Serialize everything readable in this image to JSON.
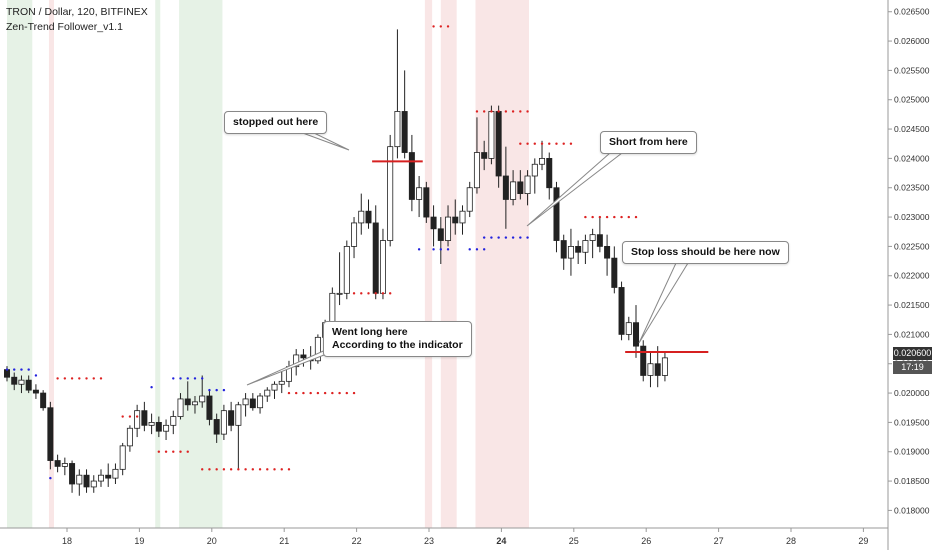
{
  "header": {
    "symbol_line": "TRON / Dollar, 120, BITFINEX",
    "indicator_line": "Zen-Trend Follower_v1.1"
  },
  "price_badge": {
    "last_price": "0.020600",
    "countdown": "17:19"
  },
  "callouts": {
    "stopped": "stopped out here",
    "long_line1": "Went long here",
    "long_line2": "According to the indicator",
    "short": "Short from here",
    "stoploss": "Stop loss should be here now"
  },
  "colors": {
    "up_candle": "#ffffff",
    "down_candle": "#222222",
    "wick": "#222222",
    "green_zone": "#e6f2e6",
    "red_zone": "#f9e6e6",
    "buy_dot": "#2222dd",
    "sell_dot": "#dd2222",
    "red_line": "#d62020",
    "axis_text": "#333333"
  },
  "chart_data": {
    "type": "candlestick",
    "ylim": [
      0.0177,
      0.0267
    ],
    "y_ticks": [
      "0.018000",
      "0.018500",
      "0.019000",
      "0.019500",
      "0.020000",
      "0.020500",
      "0.021000",
      "0.021500",
      "0.022000",
      "0.022500",
      "0.023000",
      "0.023500",
      "0.024000",
      "0.024500",
      "0.025000",
      "0.025500",
      "0.026000",
      "0.026500"
    ],
    "x_ticks": [
      "18",
      "19",
      "20",
      "21",
      "22",
      "23",
      "24",
      "25",
      "26",
      "27",
      "28",
      "29"
    ],
    "x_ticks_bold": [
      "24"
    ],
    "candles": [
      [
        0.0204,
        0.02046,
        0.0202,
        0.02027
      ],
      [
        0.02027,
        0.02035,
        0.02005,
        0.02015
      ],
      [
        0.02015,
        0.0203,
        0.02,
        0.02022
      ],
      [
        0.02022,
        0.0203,
        0.02,
        0.02005
      ],
      [
        0.02005,
        0.02015,
        0.0199,
        0.02
      ],
      [
        0.02,
        0.02005,
        0.0197,
        0.01975
      ],
      [
        0.01975,
        0.01985,
        0.0187,
        0.01885
      ],
      [
        0.01885,
        0.01895,
        0.01865,
        0.01875
      ],
      [
        0.01875,
        0.0189,
        0.0186,
        0.0188
      ],
      [
        0.0188,
        0.01885,
        0.0183,
        0.01845
      ],
      [
        0.01845,
        0.0187,
        0.01825,
        0.0186
      ],
      [
        0.0186,
        0.0187,
        0.0183,
        0.0184
      ],
      [
        0.0184,
        0.0186,
        0.0183,
        0.0185
      ],
      [
        0.0185,
        0.0187,
        0.0184,
        0.0186
      ],
      [
        0.0186,
        0.0188,
        0.0184,
        0.01855
      ],
      [
        0.01855,
        0.0188,
        0.01845,
        0.0187
      ],
      [
        0.0187,
        0.01915,
        0.0186,
        0.0191
      ],
      [
        0.0191,
        0.01945,
        0.019,
        0.0194
      ],
      [
        0.0194,
        0.0198,
        0.01925,
        0.0197
      ],
      [
        0.0197,
        0.01985,
        0.01935,
        0.01945
      ],
      [
        0.01945,
        0.01965,
        0.0193,
        0.0195
      ],
      [
        0.0195,
        0.0196,
        0.01925,
        0.01935
      ],
      [
        0.01935,
        0.01955,
        0.0192,
        0.01945
      ],
      [
        0.01945,
        0.0197,
        0.0193,
        0.0196
      ],
      [
        0.0196,
        0.02,
        0.01955,
        0.0199
      ],
      [
        0.0199,
        0.0202,
        0.0197,
        0.0198
      ],
      [
        0.0198,
        0.01995,
        0.01965,
        0.01985
      ],
      [
        0.01985,
        0.0203,
        0.01975,
        0.01995
      ],
      [
        0.01995,
        0.02005,
        0.01945,
        0.01955
      ],
      [
        0.01955,
        0.01965,
        0.01915,
        0.0193
      ],
      [
        0.0193,
        0.0198,
        0.0192,
        0.0197
      ],
      [
        0.0197,
        0.01985,
        0.01935,
        0.01945
      ],
      [
        0.01945,
        0.01985,
        0.0187,
        0.0198
      ],
      [
        0.0198,
        0.02,
        0.0196,
        0.0199
      ],
      [
        0.0199,
        0.02,
        0.0197,
        0.01975
      ],
      [
        0.01975,
        0.02,
        0.01965,
        0.01995
      ],
      [
        0.01995,
        0.0201,
        0.01985,
        0.02005
      ],
      [
        0.02005,
        0.0202,
        0.0199,
        0.02015
      ],
      [
        0.02015,
        0.0204,
        0.02,
        0.0202
      ],
      [
        0.0202,
        0.02055,
        0.0201,
        0.02045
      ],
      [
        0.02045,
        0.02075,
        0.0203,
        0.02065
      ],
      [
        0.02065,
        0.02075,
        0.02045,
        0.0206
      ],
      [
        0.0206,
        0.0208,
        0.0204,
        0.02055
      ],
      [
        0.02055,
        0.021,
        0.0205,
        0.02095
      ],
      [
        0.02095,
        0.02125,
        0.0208,
        0.0212
      ],
      [
        0.0212,
        0.0218,
        0.0211,
        0.0217
      ],
      [
        0.0217,
        0.0224,
        0.0215,
        0.0217
      ],
      [
        0.0217,
        0.0226,
        0.0216,
        0.0225
      ],
      [
        0.0225,
        0.023,
        0.0223,
        0.0229
      ],
      [
        0.0229,
        0.0234,
        0.0227,
        0.0231
      ],
      [
        0.0231,
        0.0233,
        0.0228,
        0.0229
      ],
      [
        0.0229,
        0.0232,
        0.0216,
        0.0217
      ],
      [
        0.0217,
        0.0228,
        0.0216,
        0.0226
      ],
      [
        0.0226,
        0.0244,
        0.0225,
        0.0242
      ],
      [
        0.0242,
        0.0262,
        0.024,
        0.0248
      ],
      [
        0.0248,
        0.0255,
        0.024,
        0.0241
      ],
      [
        0.0241,
        0.0244,
        0.0231,
        0.0233
      ],
      [
        0.0233,
        0.0237,
        0.023,
        0.0235
      ],
      [
        0.0235,
        0.0236,
        0.0229,
        0.023
      ],
      [
        0.023,
        0.0232,
        0.0225,
        0.0228
      ],
      [
        0.0228,
        0.023,
        0.0222,
        0.0226
      ],
      [
        0.0226,
        0.0232,
        0.0225,
        0.023
      ],
      [
        0.023,
        0.0233,
        0.0227,
        0.0229
      ],
      [
        0.0229,
        0.0232,
        0.0227,
        0.0231
      ],
      [
        0.0231,
        0.0236,
        0.023,
        0.0235
      ],
      [
        0.0235,
        0.0247,
        0.0234,
        0.0241
      ],
      [
        0.0241,
        0.0243,
        0.0238,
        0.024
      ],
      [
        0.024,
        0.0249,
        0.0239,
        0.0248
      ],
      [
        0.0248,
        0.0249,
        0.0235,
        0.0237
      ],
      [
        0.0237,
        0.0242,
        0.0228,
        0.0233
      ],
      [
        0.0233,
        0.0238,
        0.0232,
        0.0236
      ],
      [
        0.0236,
        0.0238,
        0.0233,
        0.0234
      ],
      [
        0.0234,
        0.0238,
        0.0232,
        0.0237
      ],
      [
        0.0237,
        0.024,
        0.0234,
        0.0239
      ],
      [
        0.0239,
        0.0243,
        0.0238,
        0.024
      ],
      [
        0.024,
        0.0241,
        0.0233,
        0.0235
      ],
      [
        0.0235,
        0.0236,
        0.0224,
        0.0226
      ],
      [
        0.0226,
        0.0227,
        0.0221,
        0.0223
      ],
      [
        0.0223,
        0.0228,
        0.022,
        0.0225
      ],
      [
        0.0225,
        0.0226,
        0.0222,
        0.0224
      ],
      [
        0.0224,
        0.0227,
        0.0222,
        0.0226
      ],
      [
        0.0226,
        0.0228,
        0.0223,
        0.0227
      ],
      [
        0.0227,
        0.023,
        0.0224,
        0.0225
      ],
      [
        0.0225,
        0.0227,
        0.022,
        0.0223
      ],
      [
        0.0223,
        0.0225,
        0.0217,
        0.0218
      ],
      [
        0.0218,
        0.0219,
        0.0209,
        0.021
      ],
      [
        0.021,
        0.0213,
        0.0209,
        0.0212
      ],
      [
        0.0212,
        0.0215,
        0.0206,
        0.0208
      ],
      [
        0.0208,
        0.0209,
        0.0202,
        0.0203
      ],
      [
        0.0203,
        0.0207,
        0.0201,
        0.0205
      ],
      [
        0.0205,
        0.0208,
        0.0201,
        0.0203
      ],
      [
        0.0203,
        0.0207,
        0.0202,
        0.0206
      ]
    ],
    "green_zones": [
      [
        0,
        3.5
      ],
      [
        20.5,
        21.2
      ],
      [
        23.8,
        29.8
      ]
    ],
    "red_zones": [
      [
        5.8,
        6.5
      ],
      [
        57.8,
        58.8
      ],
      [
        60.0,
        62.2
      ],
      [
        64.8,
        72.2
      ]
    ],
    "buy_dots": [
      {
        "x0": 0,
        "x1": 3,
        "y": 0.0204
      },
      {
        "x0": 4,
        "x1": 4,
        "y": 0.0203
      },
      {
        "x0": 6,
        "x1": 6,
        "y": 0.01855
      },
      {
        "x0": 20,
        "x1": 20,
        "y": 0.0201
      },
      {
        "x0": 23,
        "x1": 27,
        "y": 0.02025
      },
      {
        "x0": 28,
        "x1": 30,
        "y": 0.02005
      },
      {
        "x0": 57,
        "x1": 57,
        "y": 0.02245
      },
      {
        "x0": 59,
        "x1": 61,
        "y": 0.02245
      },
      {
        "x0": 64,
        "x1": 66,
        "y": 0.02245
      },
      {
        "x0": 66,
        "x1": 72,
        "y": 0.02265
      }
    ],
    "sell_dots": [
      {
        "x0": 7,
        "x1": 13,
        "y": 0.02025
      },
      {
        "x0": 16,
        "x1": 18,
        "y": 0.0196
      },
      {
        "x0": 21,
        "x1": 25,
        "y": 0.019
      },
      {
        "x0": 27,
        "x1": 39,
        "y": 0.0187
      },
      {
        "x0": 39,
        "x1": 48,
        "y": 0.02
      },
      {
        "x0": 48,
        "x1": 53,
        "y": 0.0217
      },
      {
        "x0": 59,
        "x1": 61,
        "y": 0.02625
      },
      {
        "x0": 65,
        "x1": 72,
        "y": 0.0248
      },
      {
        "x0": 71,
        "x1": 78,
        "y": 0.02425
      },
      {
        "x0": 80,
        "x1": 87,
        "y": 0.023
      }
    ],
    "stop_lines": [
      {
        "x0": 50.5,
        "x1": 57.5,
        "y": 0.02395
      },
      {
        "x0": 85.5,
        "x1": 97,
        "y": 0.0207
      }
    ]
  }
}
